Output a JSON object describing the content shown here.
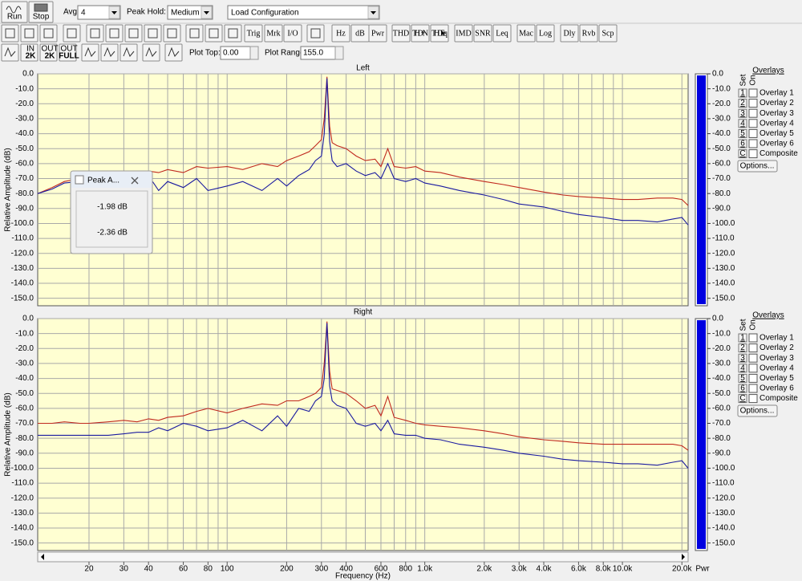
{
  "toolbar": {
    "run": "Run",
    "stop": "Stop",
    "avg_label": "Avg:",
    "avg_value": "4",
    "peak_hold_label": "Peak Hold:",
    "peak_hold_value": "Medium",
    "config": "Load Configuration",
    "buttons": [
      "Trig",
      "Mrk",
      "I/O",
      "Hz",
      "dB",
      "Pwr",
      "THD",
      "THD+N",
      "THD Freq",
      "IMD",
      "SNR",
      "Leq",
      "Mac",
      "Log",
      "Dly",
      "Rvb",
      "Scp"
    ],
    "icon_labels": [
      [
        "IN",
        "2K"
      ],
      [
        "OUT",
        "2K"
      ],
      [
        "OUT",
        "FULL"
      ]
    ],
    "plot_top_label": "Plot Top:",
    "plot_top_value": "0.00",
    "plot_range_label": "Plot Range:",
    "plot_range_value": "155.0"
  },
  "popup": {
    "title": "Peak A...",
    "lines": [
      "-1.98 dB",
      "-2.36 dB"
    ]
  },
  "overlays": {
    "title": "Overlays",
    "set_label": "Set",
    "on_label": "On",
    "options": "Options...",
    "items": [
      {
        "set": "1",
        "label": "Overlay 1",
        "color": "#22a05a"
      },
      {
        "set": "2",
        "label": "Overlay 2",
        "color": "#2aa2c8"
      },
      {
        "set": "3",
        "label": "Overlay 3",
        "color": "#8a1a8a"
      },
      {
        "set": "4",
        "label": "Overlay 4",
        "color": "#d02ad0"
      },
      {
        "set": "5",
        "label": "Overlay 5",
        "color": "#8a4a2a"
      },
      {
        "set": "6",
        "label": "Overlay 6",
        "color": "#e0864a"
      },
      {
        "set": "C",
        "label": "Composite",
        "color": "#000000"
      }
    ]
  },
  "chart_data": [
    {
      "type": "line",
      "title": "Left",
      "y_label": "Relative Amplitude (dB)",
      "log_x": true,
      "grid": true,
      "xlim": [
        11,
        21500
      ],
      "ylim": [
        -155,
        0
      ],
      "xgrid": [
        20,
        30,
        40,
        50,
        60,
        70,
        80,
        90,
        100,
        200,
        300,
        400,
        500,
        600,
        700,
        800,
        900,
        1000,
        2000,
        3000,
        4000,
        5000,
        6000,
        7000,
        8000,
        9000,
        10000,
        20000
      ],
      "yticks": [
        {
          "value": 0,
          "label": "0.0"
        },
        {
          "value": -10,
          "label": "-10.0"
        },
        {
          "value": -20,
          "label": "-20.0"
        },
        {
          "value": -30,
          "label": "-30.0"
        },
        {
          "value": -40,
          "label": "-40.0"
        },
        {
          "value": -50,
          "label": "-50.0"
        },
        {
          "value": -60,
          "label": "-60.0"
        },
        {
          "value": -70,
          "label": "-70.0"
        },
        {
          "value": -80,
          "label": "-80.0"
        },
        {
          "value": -90,
          "label": "-90.0"
        },
        {
          "value": -100,
          "label": "-100.0"
        },
        {
          "value": -110,
          "label": "-110.0"
        },
        {
          "value": -120,
          "label": "-120.0"
        },
        {
          "value": -130,
          "label": "-130.0"
        },
        {
          "value": -140,
          "label": "-140.0"
        },
        {
          "value": -150,
          "label": "-150.0"
        }
      ],
      "pwr_level": 0,
      "pwr_color": "#0000e0",
      "pwr_ticks": [
        {
          "value": 0,
          "label": "0.0"
        },
        {
          "value": -10,
          "label": "-10.0"
        },
        {
          "value": -20,
          "label": "-20.0"
        },
        {
          "value": -30,
          "label": "-30.0"
        },
        {
          "value": -40,
          "label": "-40.0"
        },
        {
          "value": -50,
          "label": "-50.0"
        },
        {
          "value": -60,
          "label": "-60.0"
        },
        {
          "value": -70,
          "label": "-70.0"
        },
        {
          "value": -80,
          "label": "-80.0"
        },
        {
          "value": -90,
          "label": "-90.0"
        },
        {
          "value": -100,
          "label": "-100.0"
        },
        {
          "value": -110,
          "label": "-110.0"
        },
        {
          "value": -120,
          "label": "-120.0"
        },
        {
          "value": -130,
          "label": "-130.0"
        },
        {
          "value": -140,
          "label": "-140.0"
        },
        {
          "value": -150,
          "label": "-150.0"
        }
      ],
      "x": [
        11,
        13,
        15,
        18,
        20,
        25,
        30,
        35,
        40,
        45,
        50,
        60,
        70,
        80,
        100,
        120,
        150,
        180,
        200,
        230,
        260,
        280,
        300,
        310,
        320,
        330,
        340,
        360,
        400,
        450,
        500,
        560,
        600,
        650,
        700,
        800,
        900,
        1000,
        1200,
        1500,
        2000,
        2500,
        3000,
        4000,
        5000,
        6000,
        8000,
        10000,
        12000,
        15000,
        18000,
        20000,
        21500
      ],
      "series": [
        {
          "color": "#c0281e",
          "values": [
            -80,
            -76,
            -72,
            -70,
            -69,
            -68,
            -67,
            -68,
            -65,
            -66,
            -64,
            -66,
            -62,
            -63,
            -62,
            -64,
            -60,
            -62,
            -58,
            -55,
            -52,
            -48,
            -44,
            -30,
            -2,
            -35,
            -46,
            -48,
            -50,
            -55,
            -58,
            -57,
            -62,
            -50,
            -62,
            -63,
            -62,
            -65,
            -66,
            -69,
            -72,
            -74,
            -76,
            -79,
            -81,
            -82,
            -83,
            -84,
            -84,
            -83,
            -83,
            -84,
            -88
          ]
        },
        {
          "color": "#1a1aa0",
          "values": [
            -80,
            -77,
            -73,
            -72,
            -72,
            -73,
            -72,
            -75,
            -68,
            -78,
            -72,
            -76,
            -70,
            -78,
            -75,
            -72,
            -78,
            -70,
            -75,
            -68,
            -64,
            -58,
            -55,
            -40,
            -3,
            -45,
            -58,
            -62,
            -60,
            -65,
            -68,
            -66,
            -70,
            -60,
            -70,
            -72,
            -70,
            -73,
            -75,
            -78,
            -81,
            -84,
            -87,
            -89,
            -92,
            -94,
            -96,
            -98,
            -98,
            -99,
            -97,
            -96,
            -101
          ]
        }
      ]
    },
    {
      "type": "line",
      "title": "Right",
      "y_label": "Relative Amplitude (dB)",
      "x_label": "Frequency (Hz)",
      "pwr_label": "Pwr",
      "log_x": true,
      "grid": true,
      "xlim": [
        11,
        21500
      ],
      "ylim": [
        -155,
        0
      ],
      "xgrid": [
        20,
        30,
        40,
        50,
        60,
        70,
        80,
        90,
        100,
        200,
        300,
        400,
        500,
        600,
        700,
        800,
        900,
        1000,
        2000,
        3000,
        4000,
        5000,
        6000,
        7000,
        8000,
        9000,
        10000,
        20000
      ],
      "xticks": [
        20,
        30,
        40,
        60,
        80,
        100,
        200,
        300,
        400,
        600,
        800,
        {
          "value": 1000,
          "label": "1.0k"
        },
        {
          "value": 2000,
          "label": "2.0k"
        },
        {
          "value": 3000,
          "label": "3.0k"
        },
        {
          "value": 4000,
          "label": "4.0k"
        },
        {
          "value": 6000,
          "label": "6.0k"
        },
        {
          "value": 8000,
          "label": "8.0k"
        },
        {
          "value": 10000,
          "label": "10.0k"
        },
        {
          "value": 20000,
          "label": "20.0k"
        }
      ],
      "yticks": [
        {
          "value": 0,
          "label": "0.0"
        },
        {
          "value": -10,
          "label": "-10.0"
        },
        {
          "value": -20,
          "label": "-20.0"
        },
        {
          "value": -30,
          "label": "-30.0"
        },
        {
          "value": -40,
          "label": "-40.0"
        },
        {
          "value": -50,
          "label": "-50.0"
        },
        {
          "value": -60,
          "label": "-60.0"
        },
        {
          "value": -70,
          "label": "-70.0"
        },
        {
          "value": -80,
          "label": "-80.0"
        },
        {
          "value": -90,
          "label": "-90.0"
        },
        {
          "value": -100,
          "label": "-100.0"
        },
        {
          "value": -110,
          "label": "-110.0"
        },
        {
          "value": -120,
          "label": "-120.0"
        },
        {
          "value": -130,
          "label": "-130.0"
        },
        {
          "value": -140,
          "label": "-140.0"
        },
        {
          "value": -150,
          "label": "-150.0"
        }
      ],
      "pwr_level": 0,
      "pwr_color": "#0000e0",
      "pwr_ticks": [
        {
          "value": 0,
          "label": "0.0"
        },
        {
          "value": -10,
          "label": "-10.0"
        },
        {
          "value": -20,
          "label": "-20.0"
        },
        {
          "value": -30,
          "label": "-30.0"
        },
        {
          "value": -40,
          "label": "-40.0"
        },
        {
          "value": -50,
          "label": "-50.0"
        },
        {
          "value": -60,
          "label": "-60.0"
        },
        {
          "value": -70,
          "label": "-70.0"
        },
        {
          "value": -80,
          "label": "-80.0"
        },
        {
          "value": -90,
          "label": "-90.0"
        },
        {
          "value": -100,
          "label": "-100.0"
        },
        {
          "value": -110,
          "label": "-110.0"
        },
        {
          "value": -120,
          "label": "-120.0"
        },
        {
          "value": -130,
          "label": "-130.0"
        },
        {
          "value": -140,
          "label": "-140.0"
        },
        {
          "value": -150,
          "label": "-150.0"
        }
      ],
      "x": [
        11,
        13,
        15,
        18,
        20,
        25,
        30,
        35,
        40,
        45,
        50,
        60,
        70,
        80,
        100,
        120,
        150,
        180,
        200,
        230,
        260,
        280,
        300,
        310,
        320,
        330,
        340,
        360,
        400,
        450,
        500,
        560,
        600,
        650,
        700,
        800,
        900,
        1000,
        1200,
        1500,
        2000,
        2500,
        3000,
        4000,
        5000,
        6000,
        8000,
        10000,
        12000,
        15000,
        18000,
        20000,
        21500
      ],
      "series": [
        {
          "color": "#c0281e",
          "values": [
            -70,
            -70,
            -69,
            -70,
            -70,
            -69,
            -68,
            -69,
            -67,
            -68,
            -66,
            -65,
            -62,
            -60,
            -63,
            -60,
            -57,
            -58,
            -55,
            -55,
            -52,
            -50,
            -46,
            -30,
            -2,
            -35,
            -47,
            -48,
            -50,
            -55,
            -60,
            -58,
            -65,
            -52,
            -66,
            -68,
            -70,
            -71,
            -72,
            -73,
            -75,
            -77,
            -79,
            -81,
            -82,
            -83,
            -84,
            -84,
            -84,
            -84,
            -84,
            -85,
            -88
          ]
        },
        {
          "color": "#1a1aa0",
          "values": [
            -78,
            -78,
            -78,
            -78,
            -78,
            -78,
            -77,
            -76,
            -76,
            -73,
            -75,
            -70,
            -72,
            -75,
            -73,
            -68,
            -75,
            -65,
            -72,
            -60,
            -62,
            -55,
            -52,
            -40,
            -3,
            -45,
            -55,
            -58,
            -60,
            -70,
            -72,
            -70,
            -75,
            -68,
            -77,
            -78,
            -78,
            -80,
            -81,
            -84,
            -86,
            -88,
            -90,
            -92,
            -94,
            -95,
            -96,
            -97,
            -97,
            -98,
            -96,
            -95,
            -100
          ]
        }
      ]
    }
  ]
}
